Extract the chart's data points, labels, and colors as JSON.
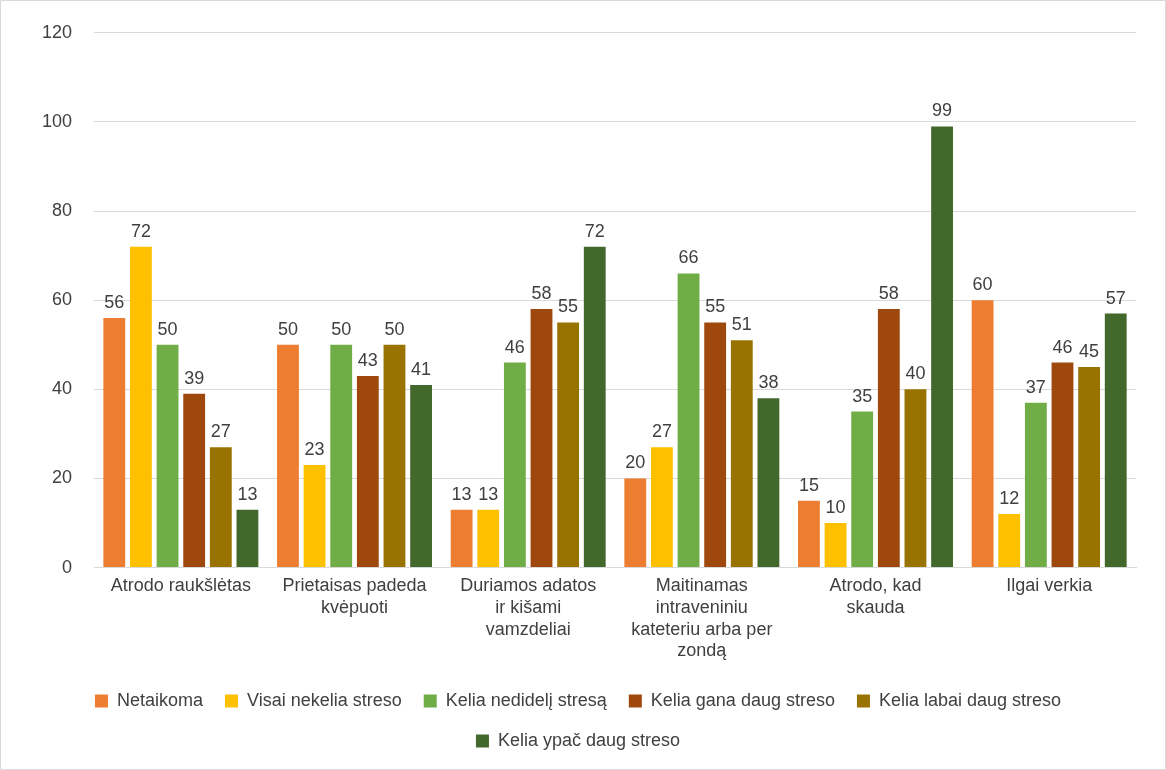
{
  "chart_data": {
    "type": "bar",
    "categories": [
      "Atrodo raukšlėtas",
      "Prietaisas padeda kvėpuoti",
      "Duriamos adatos ir kišami vamzdeliai",
      "Maitinamas intraveniniu kateteriu arba per zondą",
      "Atrodo, kad skauda",
      "Ilgai verkia"
    ],
    "series": [
      {
        "name": "Netaikoma",
        "color": "#ed7d31",
        "values": [
          56,
          50,
          13,
          20,
          15,
          60
        ]
      },
      {
        "name": "Visai nekelia streso",
        "color": "#ffc000",
        "values": [
          72,
          23,
          13,
          27,
          10,
          12
        ]
      },
      {
        "name": "Kelia nedidelį stresą",
        "color": "#70ad47",
        "values": [
          50,
          50,
          46,
          66,
          35,
          37
        ]
      },
      {
        "name": "Kelia gana daug streso",
        "color": "#9e480e",
        "values": [
          39,
          43,
          58,
          55,
          58,
          46
        ]
      },
      {
        "name": "Kelia labai daug streso",
        "color": "#997300",
        "values": [
          27,
          50,
          55,
          51,
          40,
          45
        ]
      },
      {
        "name": "Kelia ypač daug streso",
        "color": "#43682b",
        "values": [
          13,
          41,
          72,
          38,
          99,
          57
        ]
      }
    ],
    "ylim": [
      0,
      120
    ],
    "yticks": [
      0,
      20,
      40,
      60,
      80,
      100,
      120
    ],
    "grid": "y",
    "legend": "bottom",
    "data_labels": true
  }
}
